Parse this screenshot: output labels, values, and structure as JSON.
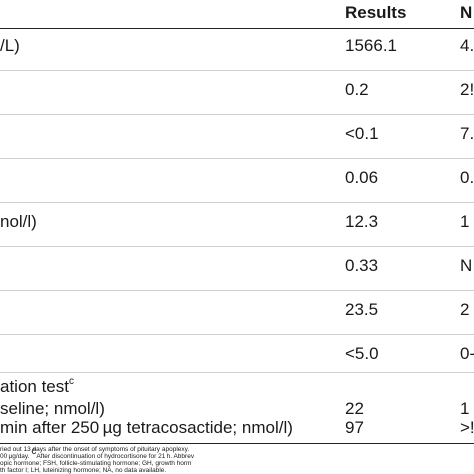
{
  "table": {
    "columns": [
      "Results",
      "N"
    ],
    "rows": [
      {
        "label": "/L)",
        "result": "1566.1",
        "normal": "4."
      },
      {
        "label": "",
        "result": "0.2",
        "normal": "2!"
      },
      {
        "label": "",
        "result": "<0.1",
        "normal": "7."
      },
      {
        "label": "",
        "result": "0.06",
        "normal": "0."
      },
      {
        "label": "nol/l)",
        "result": "12.3",
        "normal": "1"
      },
      {
        "label": "",
        "result": "0.33",
        "normal": "N"
      },
      {
        "label": "",
        "result": "23.5",
        "normal": "2"
      },
      {
        "label": "",
        "result": "<5.0",
        "normal": "0-"
      }
    ],
    "stim_title": "ation test",
    "stim_sup": "c",
    "stim_rows": [
      {
        "label": "seline; nmol/l)",
        "result": "22",
        "normal": "1"
      },
      {
        "label": "min after 250 µg tetracosactide; nmol/l)",
        "result": "97",
        "normal": ">!"
      }
    ]
  },
  "footnotes": {
    "line1": "ried out 13 days after the onset of symptoms of pituitary apoplexy.",
    "line2_a": "00 µg/day. ",
    "line2_sup": "c",
    "line2_b": "After discontinuation of hydrocortisone for 21 h. Abbrev",
    "line3": "opic hormone; FSH, follicle-stimulating hormone; GH, growth horm",
    "line4": "th factor I; LH, luteinizing hormone; NA, no data available."
  }
}
